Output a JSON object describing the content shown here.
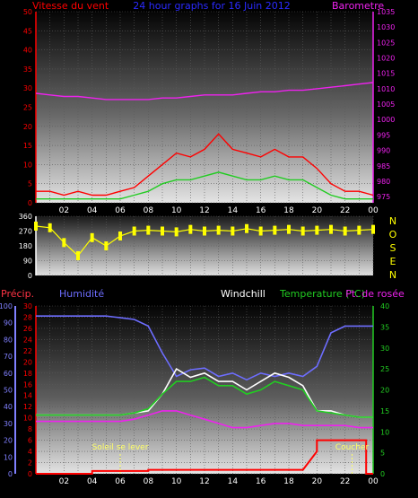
{
  "header": {
    "wind_label": "Vitesse du vent",
    "title": "24 hour graphs for 16 Juin 2012",
    "baro_label": "Barometre"
  },
  "direction_letters": [
    "N",
    "O",
    "S",
    "E",
    "N"
  ],
  "lower_labels": {
    "precip": "Précip.",
    "humidity": "Humidité",
    "windchill": "Windchill",
    "temperature": "Temperature (°C)",
    "dewpoint": "Pt. de rosée"
  },
  "sun": {
    "rise": "Soleil se lever",
    "set": "Coucher"
  },
  "colors": {
    "wind": "#ff0000",
    "gust": "#ff0000",
    "wind_avg": "#22cc22",
    "barometer": "#ee22ee",
    "direction": "#ffff00",
    "humidity": "#6d6dff",
    "windchill": "#ffffff",
    "temperature": "#22cc22",
    "dewpoint": "#ee22ee",
    "precip": "#ff0000",
    "sun_marker": "#ffff66",
    "left_axis_top": "#ff0000",
    "left_axis_humidity": "#8080ff",
    "right_axis_baro": "#ee22ee",
    "right_axis_temp": "#22cc22"
  },
  "chart_data": [
    {
      "type": "line",
      "title": "24 hour graphs for 16 Juin 2012",
      "x_ticks": [
        "02",
        "04",
        "06",
        "08",
        "10",
        "12",
        "14",
        "16",
        "18",
        "20",
        "22",
        "00"
      ],
      "y_left": {
        "label": "Vitesse du vent",
        "ticks": [
          0,
          5,
          10,
          15,
          20,
          25,
          30,
          35,
          40,
          45,
          50
        ],
        "lim": [
          0,
          50
        ]
      },
      "y_right": {
        "label": "Barometre",
        "ticks": [
          975,
          980,
          985,
          990,
          995,
          1000,
          1005,
          1010,
          1015,
          1020,
          1025,
          1030,
          1035
        ],
        "lim": [
          973,
          1035
        ]
      },
      "series": [
        {
          "name": "Vitesse du vent",
          "x": [
            0,
            1,
            2,
            3,
            4,
            5,
            6,
            7,
            8,
            9,
            10,
            11,
            12,
            13,
            14,
            15,
            16,
            17,
            18,
            19,
            20,
            21,
            22,
            23,
            24
          ],
          "values": [
            3,
            3,
            2,
            3,
            2,
            2,
            3,
            4,
            7,
            10,
            13,
            12,
            14,
            18,
            14,
            13,
            12,
            14,
            12,
            12,
            9,
            5,
            3,
            3,
            2
          ]
        },
        {
          "name": "",
          "x": [
            0,
            1,
            2,
            3,
            4,
            5,
            6,
            7,
            8,
            9,
            10,
            11,
            12,
            13,
            14,
            15,
            16,
            17,
            18,
            19,
            20,
            21,
            22,
            23,
            24
          ],
          "values": [
            1,
            1,
            1,
            1,
            1,
            1,
            1,
            2,
            3,
            5,
            6,
            6,
            7,
            8,
            7,
            6,
            6,
            7,
            6,
            6,
            4,
            2,
            1,
            1,
            1
          ]
        },
        {
          "name": "Barometre",
          "x": [
            0,
            1,
            2,
            3,
            4,
            5,
            6,
            7,
            8,
            9,
            10,
            11,
            12,
            13,
            14,
            15,
            16,
            17,
            18,
            19,
            20,
            21,
            22,
            23,
            24
          ],
          "values": [
            1008.5,
            1008,
            1007.5,
            1007.5,
            1007,
            1006.5,
            1006.5,
            1006.5,
            1006.5,
            1007,
            1007,
            1007.5,
            1008,
            1008,
            1008,
            1008.5,
            1009,
            1009,
            1009.5,
            1009.5,
            1010,
            1010.5,
            1011,
            1011.5,
            1012
          ]
        }
      ]
    },
    {
      "type": "scatter",
      "y_left": {
        "ticks": [
          0,
          90,
          180,
          270,
          360
        ],
        "lim": [
          0,
          360
        ]
      },
      "y_right_letters": [
        "N",
        "O",
        "S",
        "E",
        "N"
      ],
      "series": [
        {
          "name": "",
          "x": [
            0,
            1,
            2,
            3,
            4,
            5,
            6,
            7,
            8,
            9,
            10,
            11,
            12,
            13,
            14,
            15,
            16,
            17,
            18,
            19,
            20,
            21,
            22,
            23,
            24
          ],
          "values": [
            300,
            290,
            200,
            120,
            230,
            180,
            240,
            270,
            275,
            270,
            265,
            280,
            270,
            275,
            270,
            285,
            270,
            275,
            280,
            270,
            275,
            280,
            270,
            275,
            280
          ]
        }
      ]
    },
    {
      "type": "line",
      "x_ticks": [
        "02",
        "04",
        "06",
        "08",
        "10",
        "12",
        "14",
        "16",
        "18",
        "20",
        "22",
        "00"
      ],
      "y_left_precip": {
        "label": "Précip.",
        "ticks": [
          0,
          2,
          4,
          6,
          8,
          10,
          12,
          14,
          16,
          18,
          20,
          22,
          24,
          26,
          28,
          30
        ],
        "lim": [
          0,
          30
        ]
      },
      "y_left_humidity": {
        "label": "Humidité",
        "ticks": [
          0,
          10,
          20,
          30,
          40,
          50,
          60,
          70,
          80,
          90,
          100
        ],
        "lim": [
          0,
          100
        ]
      },
      "y_right": {
        "label": "Temperature (°C)",
        "ticks": [
          0,
          5,
          10,
          15,
          20,
          25,
          30,
          35,
          40
        ],
        "lim": [
          0,
          40
        ]
      },
      "annotations": [
        {
          "text": "Soleil se lever",
          "x": 6.0
        },
        {
          "text": "Coucher",
          "x": 22.5
        }
      ],
      "series": [
        {
          "name": "Humidité",
          "axis": "humidity",
          "x": [
            0,
            1,
            2,
            3,
            4,
            5,
            6,
            7,
            8,
            9,
            10,
            11,
            12,
            13,
            14,
            15,
            16,
            17,
            18,
            19,
            20,
            21,
            22,
            23,
            24
          ],
          "values": [
            94,
            94,
            94,
            94,
            94,
            94,
            93,
            92,
            88,
            72,
            58,
            62,
            63,
            58,
            60,
            56,
            60,
            58,
            60,
            58,
            64,
            84,
            88,
            88,
            88
          ]
        },
        {
          "name": "Windchill",
          "axis": "temperature",
          "x": [
            0,
            1,
            2,
            3,
            4,
            5,
            6,
            7,
            8,
            9,
            10,
            11,
            12,
            13,
            14,
            15,
            16,
            17,
            18,
            19,
            20,
            21,
            22,
            23,
            24
          ],
          "values": [
            14,
            14,
            14,
            14,
            14,
            14,
            14,
            14.5,
            15,
            19,
            25,
            23,
            24,
            22,
            22,
            20,
            22,
            24,
            23,
            21,
            15,
            15,
            14,
            13.5,
            13.5
          ]
        },
        {
          "name": "Temperature (°C)",
          "axis": "temperature",
          "x": [
            0,
            1,
            2,
            3,
            4,
            5,
            6,
            7,
            8,
            9,
            10,
            11,
            12,
            13,
            14,
            15,
            16,
            17,
            18,
            19,
            20,
            21,
            22,
            23,
            24
          ],
          "values": [
            14,
            14,
            14,
            14,
            14,
            14,
            14,
            14.5,
            15.5,
            19,
            22,
            22,
            23,
            21,
            21,
            19,
            20,
            22,
            21,
            20,
            15,
            14.5,
            14,
            13.5,
            13.5
          ]
        },
        {
          "name": "Pt. de rosée",
          "axis": "temperature",
          "x": [
            0,
            1,
            2,
            3,
            4,
            5,
            6,
            7,
            8,
            9,
            10,
            11,
            12,
            13,
            14,
            15,
            16,
            17,
            18,
            19,
            20,
            21,
            22,
            23,
            24
          ],
          "values": [
            12.5,
            12.5,
            12.5,
            12.5,
            12.5,
            12.5,
            12.5,
            13,
            14,
            15,
            15,
            14,
            13,
            12,
            11,
            11,
            11.5,
            12,
            12,
            11.5,
            11.5,
            11.5,
            11.5,
            11,
            11
          ]
        },
        {
          "name": "Précip.",
          "axis": "precip",
          "x": [
            0,
            4,
            4,
            8,
            8,
            19,
            20,
            20,
            21,
            23.5,
            23.5,
            24
          ],
          "values": [
            0,
            0,
            0.5,
            0.5,
            0.7,
            0.7,
            4,
            6,
            6,
            6,
            0,
            0
          ]
        }
      ]
    }
  ]
}
